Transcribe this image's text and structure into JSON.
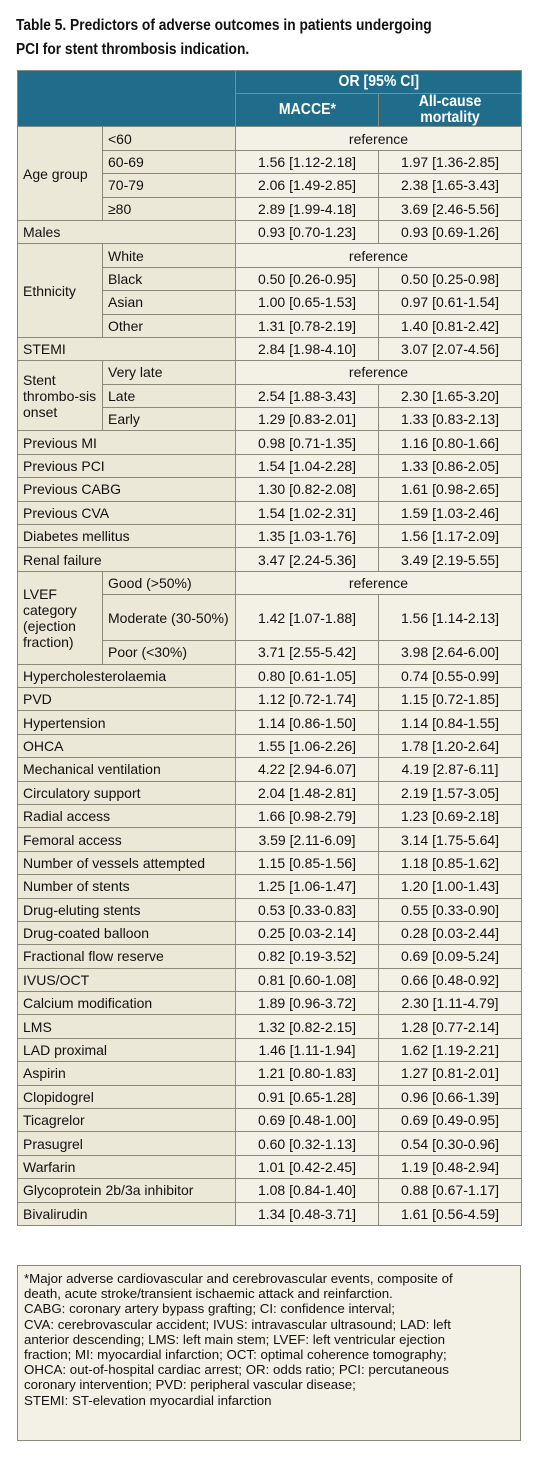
{
  "caption": {
    "line1": "Table 5. Predictors of adverse outcomes in patients undergoing",
    "line2": "PCI for stent thrombosis indication."
  },
  "header": {
    "group": "OR [95% CI]",
    "col1": "MACCE*",
    "col2": "All-cause mortality"
  },
  "reference_text": "reference",
  "groups": {
    "age": {
      "label": "Age group",
      "rows": [
        {
          "sub": "<60"
        },
        {
          "sub": "60-69",
          "macce": "1.56 [1.12-2.18]",
          "mort": "1.97 [1.36-2.85]"
        },
        {
          "sub": "70-79",
          "macce": "2.06 [1.49-2.85]",
          "mort": "2.38 [1.65-3.43]"
        },
        {
          "sub": "≥80",
          "macce": "2.89 [1.99-4.18]",
          "mort": "3.69 [2.46-5.56]"
        }
      ]
    },
    "males": {
      "label": "Males",
      "macce": "0.93 [0.70-1.23]",
      "mort": "0.93 [0.69-1.26]"
    },
    "ethnicity": {
      "label": "Ethnicity",
      "rows": [
        {
          "sub": "White"
        },
        {
          "sub": "Black",
          "macce": "0.50 [0.26-0.95]",
          "mort": "0.50 [0.25-0.98]"
        },
        {
          "sub": "Asian",
          "macce": "1.00 [0.65-1.53]",
          "mort": "0.97 [0.61-1.54]"
        },
        {
          "sub": "Other",
          "macce": "1.31 [0.78-2.19]",
          "mort": "1.40 [0.81-2.42]"
        }
      ]
    },
    "stemi": {
      "label": "STEMI",
      "macce": "2.84 [1.98-4.10]",
      "mort": "3.07 [2.07-4.56]"
    },
    "onset": {
      "label": "Stent thrombo-sis onset",
      "rows": [
        {
          "sub": "Very late"
        },
        {
          "sub": "Late",
          "macce": "2.54 [1.88-3.43]",
          "mort": "2.30 [1.65-3.20]"
        },
        {
          "sub": "Early",
          "macce": "1.29 [0.83-2.01]",
          "mort": "1.33 [0.83-2.13]"
        }
      ]
    },
    "mid": [
      {
        "label": "Previous MI",
        "macce": "0.98 [0.71-1.35]",
        "mort": "1.16 [0.80-1.66]"
      },
      {
        "label": "Previous PCI",
        "macce": "1.54 [1.04-2.28]",
        "mort": "1.33 [0.86-2.05]"
      },
      {
        "label": "Previous CABG",
        "macce": "1.30 [0.82-2.08]",
        "mort": "1.61 [0.98-2.65]"
      },
      {
        "label": "Previous CVA",
        "macce": "1.54 [1.02-2.31]",
        "mort": "1.59 [1.03-2.46]"
      },
      {
        "label": "Diabetes mellitus",
        "macce": "1.35 [1.03-1.76]",
        "mort": "1.56 [1.17-2.09]"
      },
      {
        "label": "Renal failure",
        "macce": "3.47 [2.24-5.36]",
        "mort": "3.49 [2.19-5.55]"
      }
    ],
    "lvef": {
      "label": "LVEF category (ejection fraction)",
      "rows": [
        {
          "sub": "Good (>50%)"
        },
        {
          "sub": "Moderate (30-50%)",
          "macce": "1.42 [1.07-1.88]",
          "mort": "1.56 [1.14-2.13]"
        },
        {
          "sub": "Poor (<30%)",
          "macce": "3.71 [2.55-5.42]",
          "mort": "3.98 [2.64-6.00]"
        }
      ]
    },
    "rest": [
      {
        "label": "Hypercholesterolaemia",
        "macce": "0.80 [0.61-1.05]",
        "mort": "0.74 [0.55-0.99]"
      },
      {
        "label": "PVD",
        "macce": "1.12 [0.72-1.74]",
        "mort": "1.15 [0.72-1.85]"
      },
      {
        "label": "Hypertension",
        "macce": "1.14 [0.86-1.50]",
        "mort": "1.14 [0.84-1.55]"
      },
      {
        "label": "OHCA",
        "macce": "1.55 [1.06-2.26]",
        "mort": "1.78 [1.20-2.64]"
      },
      {
        "label": "Mechanical ventilation",
        "macce": "4.22 [2.94-6.07]",
        "mort": "4.19 [2.87-6.11]"
      },
      {
        "label": "Circulatory support",
        "macce": "2.04 [1.48-2.81]",
        "mort": "2.19 [1.57-3.05]"
      },
      {
        "label": "Radial access",
        "macce": "1.66 [0.98-2.79]",
        "mort": "1.23 [0.69-2.18]"
      },
      {
        "label": "Femoral access",
        "macce": "3.59 [2.11-6.09]",
        "mort": "3.14 [1.75-5.64]"
      },
      {
        "label": "Number of vessels attempted",
        "macce": "1.15 [0.85-1.56]",
        "mort": "1.18 [0.85-1.62]"
      },
      {
        "label": "Number of stents",
        "macce": "1.25 [1.06-1.47]",
        "mort": "1.20 [1.00-1.43]"
      },
      {
        "label": "Drug-eluting stents",
        "macce": "0.53 [0.33-0.83]",
        "mort": "0.55 [0.33-0.90]"
      },
      {
        "label": "Drug-coated balloon",
        "macce": "0.25 [0.03-2.14]",
        "mort": "0.28 [0.03-2.44]"
      },
      {
        "label": "Fractional flow reserve",
        "macce": "0.82 [0.19-3.52]",
        "mort": "0.69 [0.09-5.24]"
      },
      {
        "label": "IVUS/OCT",
        "macce": "0.81 [0.60-1.08]",
        "mort": "0.66 [0.48-0.92]"
      },
      {
        "label": "Calcium modification",
        "macce": "1.89 [0.96-3.72]",
        "mort": "2.30 [1.11-4.79]"
      },
      {
        "label": "LMS",
        "macce": "1.32 [0.82-2.15]",
        "mort": "1.28 [0.77-2.14]"
      },
      {
        "label": "LAD proximal",
        "macce": "1.46 [1.11-1.94]",
        "mort": "1.62 [1.19-2.21]"
      },
      {
        "label": "Aspirin",
        "macce": "1.21 [0.80-1.83]",
        "mort": "1.27 [0.81-2.01]"
      },
      {
        "label": "Clopidogrel",
        "macce": "0.91 [0.65-1.28]",
        "mort": "0.96 [0.66-1.39]"
      },
      {
        "label": "Ticagrelor",
        "macce": "0.69 [0.48-1.00]",
        "mort": "0.69 [0.49-0.95]"
      },
      {
        "label": "Prasugrel",
        "macce": "0.60 [0.32-1.13]",
        "mort": "0.54 [0.30-0.96]"
      },
      {
        "label": "Warfarin",
        "macce": "1.01 [0.42-2.45]",
        "mort": "1.19 [0.48-2.94]"
      },
      {
        "label": "Glycoprotein 2b/3a inhibitor",
        "macce": "1.08 [0.84-1.40]",
        "mort": "0.88 [0.67-1.17]"
      },
      {
        "label": "Bivalirudin",
        "macce": "1.34 [0.48-3.71]",
        "mort": "1.61 [0.56-4.59]"
      }
    ]
  },
  "footnote": [
    "*Major adverse cardiovascular and cerebrovascular events, composite of",
    "death, acute stroke/transient ischaemic attack and reinfarction.",
    "CABG: coronary artery bypass grafting; CI: confidence interval;",
    "CVA: cerebrovascular accident; IVUS: intravascular ultrasound; LAD: left",
    "anterior descending; LMS: left main stem; LVEF: left ventricular ejection",
    "fraction; MI: myocardial infarction; OCT: optimal coherence tomography;",
    "OHCA: out-of-hospital cardiac arrest; OR: odds ratio; PCI: percutaneous",
    "coronary intervention; PVD: peripheral vascular disease;",
    "STEMI: ST-elevation myocardial infarction"
  ]
}
